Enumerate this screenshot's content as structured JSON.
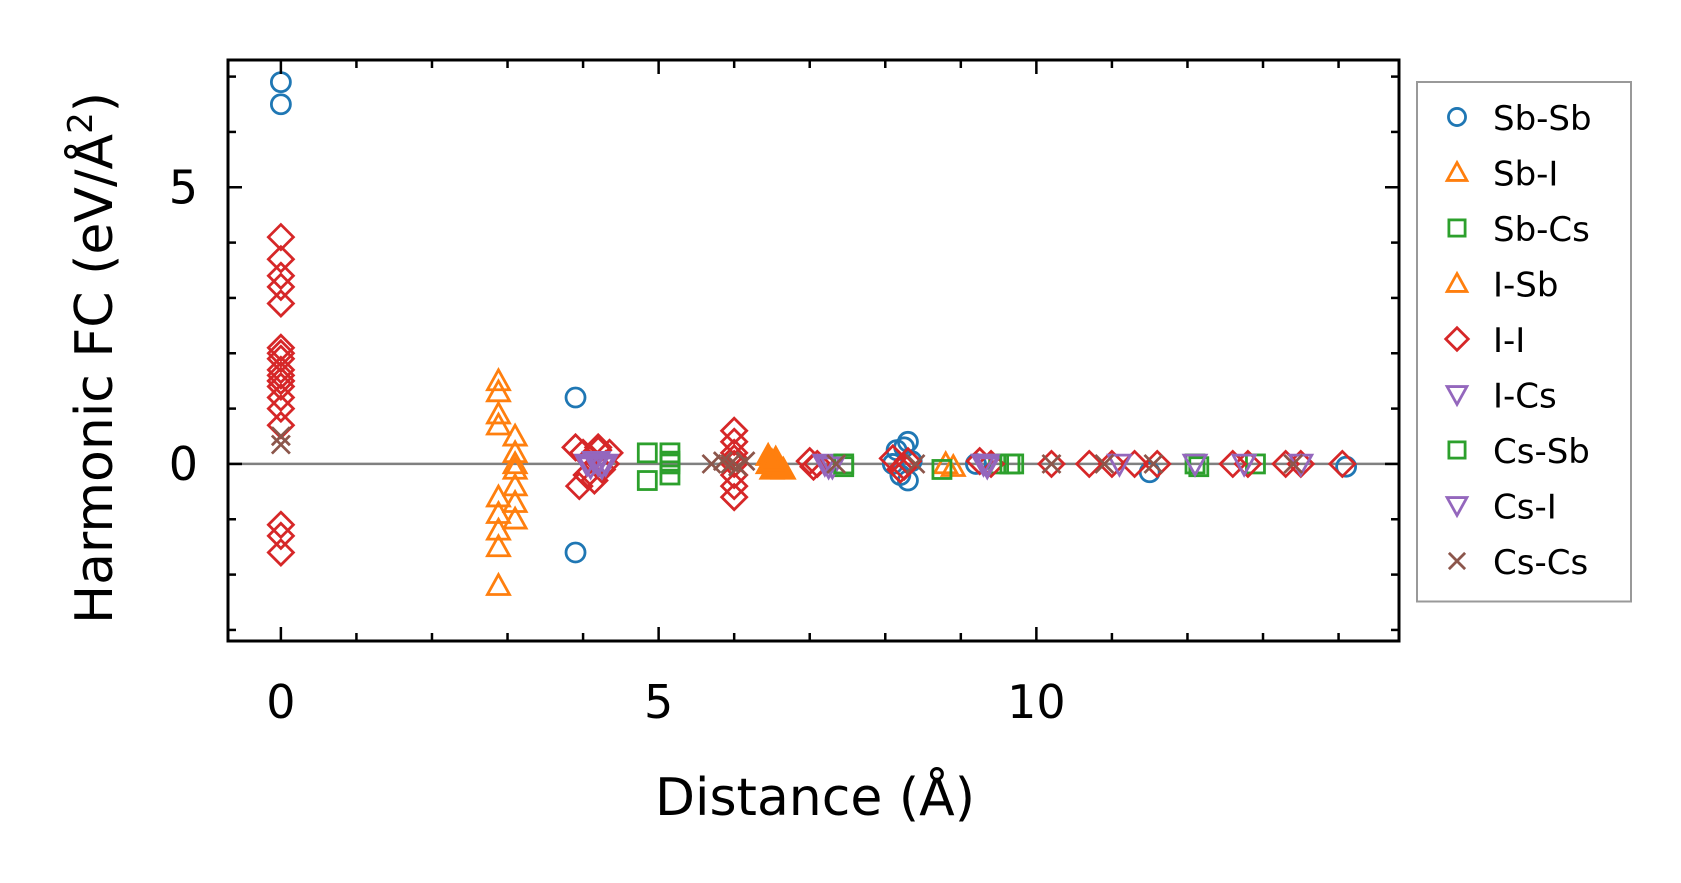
{
  "chart_data": {
    "type": "scatter",
    "title": "",
    "xlabel": "Distance (Å)",
    "ylabel_main": "Harmonic FC (eV/Å",
    "ylabel_sup": "2",
    "ylabel_close": ")",
    "xlim": [
      -0.7,
      14.8
    ],
    "ylim": [
      -3.2,
      7.3
    ],
    "xticks": [
      {
        "value": 0,
        "label": "0"
      },
      {
        "value": 5,
        "label": "5"
      },
      {
        "value": 10,
        "label": "10"
      }
    ],
    "yticks": [
      {
        "value": 0,
        "label": "0"
      },
      {
        "value": 5,
        "label": "5"
      }
    ],
    "x_minor_step": 1,
    "y_minor_step": 1,
    "zero_line": true,
    "grid": false,
    "legend_position": "outside-right",
    "series": [
      {
        "name": "Sb-Sb",
        "marker": "circle",
        "color": "#1f77b4",
        "filled": false,
        "x": [
          0,
          0,
          3.9,
          3.9,
          8.15,
          8.2,
          8.25,
          8.3,
          8.3,
          8.35,
          8.1,
          9.2,
          11.5,
          14.1
        ],
        "y": [
          6.9,
          6.5,
          1.2,
          -1.6,
          0.25,
          -0.2,
          0.3,
          0.4,
          -0.3,
          0.05,
          0.0,
          0.0,
          -0.15,
          -0.05
        ]
      },
      {
        "name": "Sb-I",
        "marker": "triangle-up",
        "color": "#ff7f0e",
        "filled": false,
        "x": [
          2.88,
          2.88,
          2.88,
          2.88,
          2.88,
          2.88,
          2.88,
          2.88,
          2.88,
          3.1,
          3.1,
          3.1,
          3.1,
          3.1,
          3.1,
          3.1,
          8.8,
          8.9
        ],
        "y": [
          1.5,
          1.3,
          0.9,
          0.7,
          -0.6,
          -0.9,
          -1.2,
          -1.5,
          -2.2,
          0.5,
          0.2,
          -0.1,
          -0.4,
          -0.7,
          -1.0,
          0.0,
          0.0,
          -0.05
        ]
      },
      {
        "name": "Sb-Cs",
        "marker": "square",
        "color": "#2ca02c",
        "filled": false,
        "x": [
          4.85,
          4.85,
          5.15,
          5.15,
          5.15,
          5.15,
          7.45,
          8.75,
          9.5,
          9.7,
          12.1,
          12.9
        ],
        "y": [
          0.2,
          -0.3,
          0.2,
          0.0,
          -0.2,
          0.05,
          -0.05,
          -0.1,
          0.0,
          0.0,
          0.0,
          0.0
        ]
      },
      {
        "name": "I-Sb",
        "marker": "triangle-up",
        "color": "#ff7f0e",
        "filled": true,
        "x": [
          6.45,
          6.45,
          6.5,
          6.55,
          6.6,
          6.65,
          6.5
        ],
        "y": [
          0.15,
          0.0,
          -0.1,
          0.1,
          -0.05,
          -0.1,
          0.05
        ]
      },
      {
        "name": "I-I",
        "marker": "diamond",
        "color": "#d62728",
        "filled": false,
        "x": [
          0,
          0,
          0,
          0,
          0,
          0,
          0,
          0,
          0,
          0,
          0,
          0,
          0,
          0,
          0,
          0,
          0,
          0,
          0,
          3.9,
          3.95,
          4.0,
          4.05,
          4.1,
          4.15,
          4.2,
          4.25,
          4.3,
          4.35,
          4.05,
          4.2,
          6.0,
          6.0,
          6.0,
          6.0,
          6.0,
          6.0,
          6.0,
          6.0,
          7.0,
          7.05,
          7.1,
          8.1,
          8.2,
          8.3,
          8.25,
          9.25,
          9.4,
          10.2,
          10.7,
          11.0,
          11.3,
          11.6,
          12.6,
          12.8,
          13.3,
          13.5,
          14.05
        ],
        "y": [
          4.1,
          3.7,
          3.4,
          3.2,
          2.9,
          2.1,
          2.0,
          1.9,
          1.7,
          1.6,
          1.5,
          1.5,
          1.4,
          1.2,
          1.0,
          0.7,
          -1.1,
          -1.3,
          -1.6,
          0.3,
          -0.4,
          0.2,
          -0.2,
          0.1,
          -0.3,
          0.25,
          -0.1,
          0.0,
          0.2,
          -0.2,
          0.3,
          0.6,
          0.4,
          0.2,
          0.0,
          -0.2,
          -0.4,
          -0.6,
          0.1,
          0.05,
          -0.05,
          0.0,
          0.1,
          -0.1,
          0.05,
          -0.05,
          0.05,
          0.0,
          0.0,
          0.0,
          0.0,
          0.0,
          0.0,
          0.0,
          0.0,
          0.0,
          0.0,
          0.0
        ]
      },
      {
        "name": "I-Cs",
        "marker": "triangle-down",
        "color": "#9467bd",
        "filled": false,
        "x": [
          4.05,
          4.1,
          4.15,
          4.2,
          4.25,
          4.3,
          7.2,
          7.3,
          9.3,
          9.35,
          11.1
        ],
        "y": [
          0.0,
          -0.05,
          0.05,
          0.0,
          -0.05,
          0.0,
          0.0,
          -0.05,
          0.0,
          -0.05,
          0.0
        ]
      },
      {
        "name": "Cs-Sb",
        "marker": "square",
        "color": "#2ca02c",
        "filled": false,
        "x": [
          7.45,
          9.65,
          12.15
        ],
        "y": [
          0.0,
          0.0,
          -0.05
        ]
      },
      {
        "name": "Cs-I",
        "marker": "triangle-down",
        "color": "#9467bd",
        "filled": false,
        "x": [
          4.2,
          4.25,
          7.25,
          9.35,
          12.1,
          12.75,
          13.5
        ],
        "y": [
          0.05,
          -0.05,
          -0.05,
          0.0,
          0.0,
          0.0,
          0.0
        ]
      },
      {
        "name": "Cs-Cs",
        "marker": "x",
        "color": "#8c564b",
        "filled": false,
        "x": [
          0,
          0,
          5.7,
          5.85,
          5.95,
          6.05,
          6.15,
          7.35,
          8.4,
          10.2,
          10.9,
          11.55,
          13.4
        ],
        "y": [
          0.5,
          0.35,
          0.0,
          0.05,
          0.0,
          -0.05,
          0.05,
          0.0,
          0.0,
          0.0,
          0.0,
          0.0,
          0.0
        ]
      }
    ]
  }
}
